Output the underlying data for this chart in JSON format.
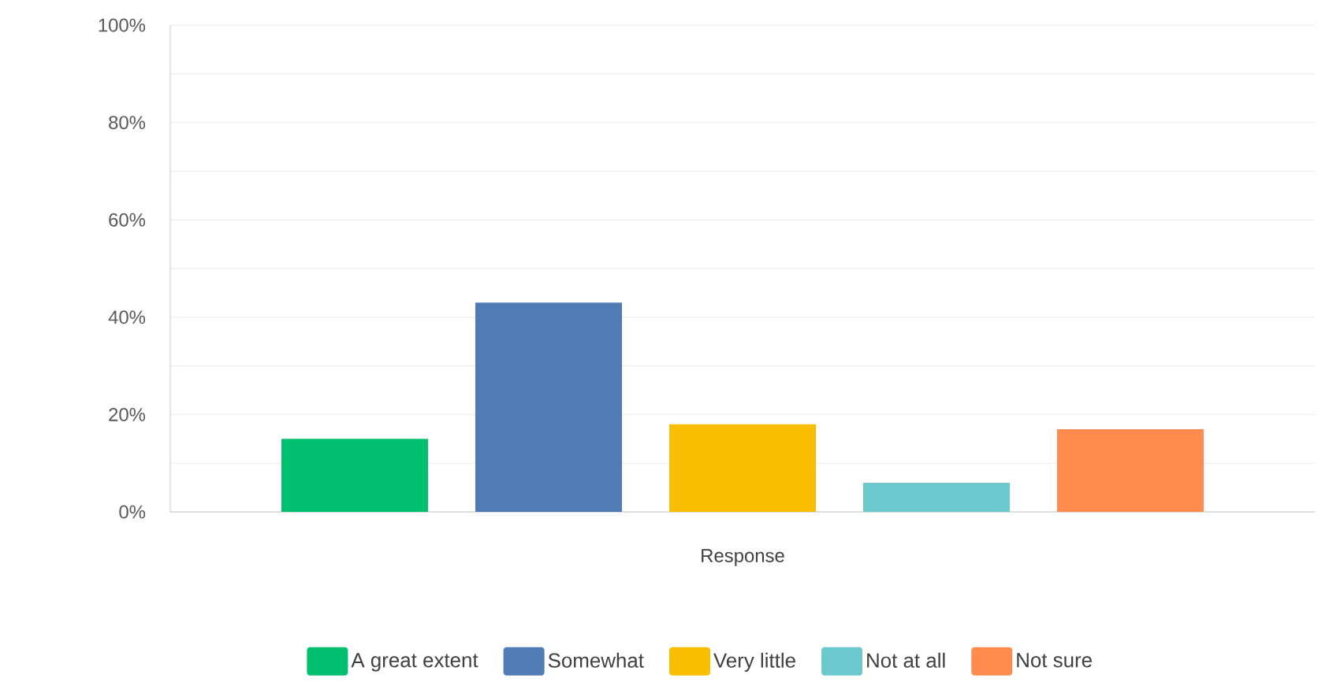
{
  "chart_data": {
    "type": "bar",
    "xlabel": "Response",
    "categories": [
      null
    ],
    "series": [
      {
        "name": "A great extent",
        "color": "#00bf6f",
        "values": [
          15
        ]
      },
      {
        "name": "Somewhat",
        "color": "#507cb6",
        "values": [
          43
        ]
      },
      {
        "name": "Very little",
        "color": "#f9be00",
        "values": [
          18
        ]
      },
      {
        "name": "Not at all",
        "color": "#6bc8cd",
        "values": [
          6
        ]
      },
      {
        "name": "Not sure",
        "color": "#ff8b4f",
        "values": [
          17
        ]
      }
    ],
    "ylim": [
      0,
      100
    ],
    "yticks": [
      {
        "value": 0,
        "label": "0%"
      },
      {
        "value": 10,
        "label": null
      },
      {
        "value": 20,
        "label": "20%"
      },
      {
        "value": 30,
        "label": null
      },
      {
        "value": 40,
        "label": "40%"
      },
      {
        "value": 50,
        "label": null
      },
      {
        "value": 60,
        "label": "60%"
      },
      {
        "value": 70,
        "label": null
      },
      {
        "value": 80,
        "label": "80%"
      },
      {
        "value": 90,
        "label": null
      },
      {
        "value": 100,
        "label": "100%"
      }
    ],
    "grid": "y",
    "legend": "bottom"
  }
}
